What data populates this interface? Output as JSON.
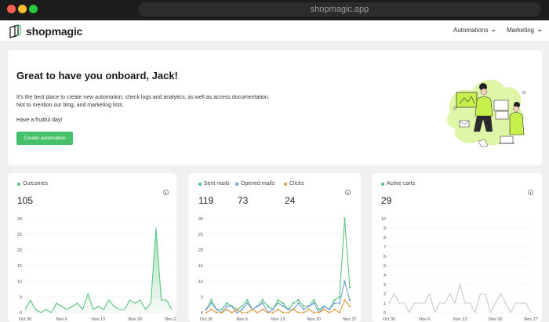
{
  "browser": {
    "url": "shopmagic.app"
  },
  "brand": {
    "name": "shopmagic",
    "accent": "#46c06b"
  },
  "nav": {
    "automations": "Automations",
    "marketing": "Marketing"
  },
  "welcome": {
    "title": "Great to have you onboard, Jack!",
    "line1": "It's the best place to create new automation, check logs and analytics, as well as access documentation.",
    "line2": "Not to mention our blog, and marketing lists.",
    "signoff": "Have a fruitful day!",
    "button": "Create automation"
  },
  "cards": {
    "outcomes": {
      "label": "Outcomes",
      "value": "105"
    },
    "mails": {
      "sent_label": "Sent mails",
      "sent_value": "119",
      "opened_label": "Opened mails",
      "opened_value": "73",
      "clicks_label": "Clicks",
      "clicks_value": "24"
    },
    "carts": {
      "label": "Active carts",
      "value": "29"
    }
  },
  "chart_data": [
    {
      "type": "area",
      "x": [
        "Oct 30",
        "Oct 31",
        "Nov 1",
        "Nov 2",
        "Nov 3",
        "Nov 4",
        "Nov 5",
        "Nov 6",
        "Nov 7",
        "Nov 8",
        "Nov 9",
        "Nov 10",
        "Nov 11",
        "Nov 12",
        "Nov 13",
        "Nov 14",
        "Nov 15",
        "Nov 16",
        "Nov 17",
        "Nov 18",
        "Nov 19",
        "Nov 20",
        "Nov 21",
        "Nov 22",
        "Nov 23",
        "Nov 24",
        "Nov 25",
        "Nov 26",
        "Nov 27"
      ],
      "xticks": [
        "Oct 30",
        "Nov 6",
        "Nov 13",
        "Nov 20",
        "Nov 27"
      ],
      "ylim": [
        0,
        30
      ],
      "yticks": [
        0,
        5,
        10,
        15,
        20,
        25,
        30
      ],
      "grid": true,
      "series": [
        {
          "name": "Outcomes",
          "color": "#5bc47e",
          "values": [
            1,
            4,
            1,
            0,
            1,
            0,
            3,
            2,
            1,
            2,
            3,
            1,
            6,
            1,
            2,
            1,
            4,
            2,
            1,
            1,
            4,
            3,
            4,
            1,
            3,
            27,
            4,
            4,
            1
          ]
        }
      ]
    },
    {
      "type": "line",
      "x": [
        "Oct 30",
        "Oct 31",
        "Nov 1",
        "Nov 2",
        "Nov 3",
        "Nov 4",
        "Nov 5",
        "Nov 6",
        "Nov 7",
        "Nov 8",
        "Nov 9",
        "Nov 10",
        "Nov 11",
        "Nov 12",
        "Nov 13",
        "Nov 14",
        "Nov 15",
        "Nov 16",
        "Nov 17",
        "Nov 18",
        "Nov 19",
        "Nov 20",
        "Nov 21",
        "Nov 22",
        "Nov 23",
        "Nov 24",
        "Nov 25",
        "Nov 26",
        "Nov 27"
      ],
      "xticks": [
        "Oct 30",
        "Nov 6",
        "Nov 13",
        "Nov 20",
        "Nov 27"
      ],
      "ylim": [
        0,
        30
      ],
      "yticks": [
        0,
        5,
        10,
        15,
        20,
        25,
        30
      ],
      "grid": true,
      "series": [
        {
          "name": "Sent mails",
          "color": "#5bc47e",
          "values": [
            1,
            4,
            1,
            1,
            3,
            2,
            1,
            2,
            4,
            1,
            2,
            4,
            2,
            1,
            4,
            3,
            1,
            3,
            4,
            2,
            2,
            4,
            1,
            2,
            1,
            4,
            5,
            30,
            8
          ]
        },
        {
          "name": "Opened mails",
          "color": "#6f9fd8",
          "values": [
            1,
            3,
            1,
            0,
            2,
            2,
            0,
            1,
            3,
            1,
            2,
            3,
            0,
            1,
            3,
            2,
            1,
            1,
            3,
            1,
            2,
            3,
            0,
            2,
            1,
            3,
            3,
            10,
            4
          ]
        },
        {
          "name": "Clicks",
          "color": "#e0a04a",
          "values": [
            0,
            1,
            0,
            0,
            1,
            0,
            1,
            0,
            0,
            1,
            0,
            1,
            0,
            0,
            1,
            0,
            0,
            1,
            0,
            0,
            1,
            0,
            0,
            1,
            0,
            1,
            0,
            4,
            2
          ]
        }
      ]
    },
    {
      "type": "line",
      "x": [
        "Oct 30",
        "Oct 31",
        "Nov 1",
        "Nov 2",
        "Nov 3",
        "Nov 4",
        "Nov 5",
        "Nov 6",
        "Nov 7",
        "Nov 8",
        "Nov 9",
        "Nov 10",
        "Nov 11",
        "Nov 12",
        "Nov 13",
        "Nov 14",
        "Nov 15",
        "Nov 16",
        "Nov 17",
        "Nov 18",
        "Nov 19",
        "Nov 20",
        "Nov 21",
        "Nov 22",
        "Nov 23",
        "Nov 24",
        "Nov 25",
        "Nov 26",
        "Nov 27"
      ],
      "xticks": [
        "Oct 30",
        "Nov 6",
        "Nov 13",
        "Nov 20",
        "Nov 27"
      ],
      "ylim": [
        0,
        10
      ],
      "yticks": [
        0,
        1,
        2,
        3,
        4,
        5,
        6,
        7,
        8,
        9,
        10
      ],
      "grid": true,
      "series": [
        {
          "name": "Active carts",
          "color": "#c8c8c8",
          "values": [
            1,
            2,
            1,
            1,
            0,
            1,
            1,
            1,
            2,
            0,
            1,
            1,
            2,
            1,
            3,
            1,
            1,
            0,
            2,
            2,
            0,
            1,
            2,
            1,
            0,
            1,
            1,
            1,
            0
          ]
        }
      ]
    }
  ]
}
